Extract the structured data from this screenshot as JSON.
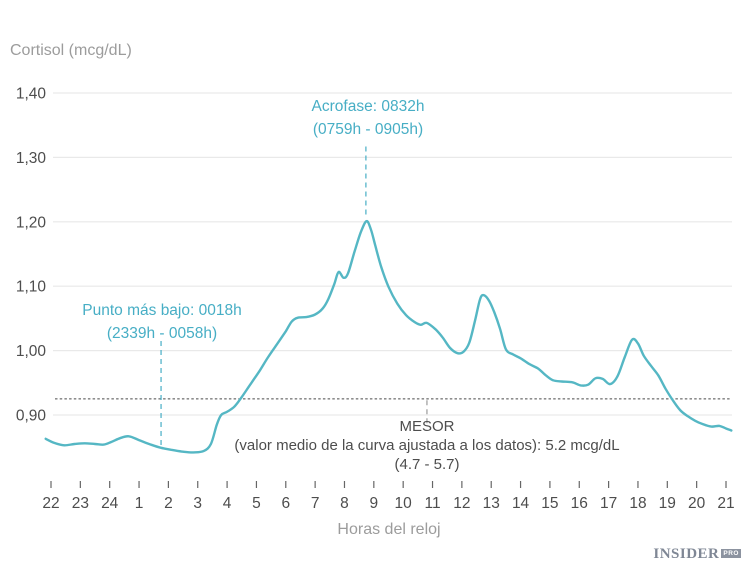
{
  "y_axis_title": "Cortisol (mcg/dL)",
  "x_axis_title": "Horas del reloj",
  "logo": {
    "text": "INSIDER",
    "badge": "PRO"
  },
  "annotations": {
    "acrophase": {
      "line1": "Acrofase: 0832h",
      "line2": "(0759h - 0905h)"
    },
    "nadir": {
      "line1": "Punto más bajo: 0018h",
      "line2": "(2339h - 0058h)"
    },
    "mesor": {
      "line1": "MESOR",
      "line2": "(valor medio de la curva ajustada a los datos): 5.2 mcg/dL",
      "line3": "(4.7 - 5.7)"
    }
  },
  "chart_data": {
    "type": "line",
    "title": "",
    "xlabel": "Horas del reloj",
    "ylabel": "Cortisol (mcg/dL)",
    "legend": "none",
    "grid": "horizontal-only",
    "colors": {
      "line": "#55b7c4",
      "accent_text": "#47aec5",
      "grid": "#e9e9e9",
      "tick_text": "#4d4d4d",
      "tick_mark": "#666666",
      "mesor_dash": "#4a4a4a",
      "muted_text": "#9c9c9c"
    },
    "y_ticks": [
      {
        "label": "1,40",
        "value": 1.4
      },
      {
        "label": "1,30",
        "value": 1.3
      },
      {
        "label": "1,20",
        "value": 1.2
      },
      {
        "label": "1,10",
        "value": 1.1
      },
      {
        "label": "1,00",
        "value": 1.0
      },
      {
        "label": "0,90",
        "value": 0.9
      }
    ],
    "x_tick_labels": [
      "22",
      "23",
      "24",
      "1",
      "2",
      "3",
      "4",
      "5",
      "6",
      "7",
      "8",
      "9",
      "10",
      "11",
      "12",
      "13",
      "14",
      "15",
      "16",
      "17",
      "18",
      "19",
      "20",
      "21"
    ],
    "x_first_hour": 22,
    "ylim": [
      0.85,
      1.45
    ],
    "mesor_line_value": 0.925,
    "markers": {
      "acrophase_line": {
        "hour": 32.73,
        "v_from": 1.317,
        "v_to": 1.209
      },
      "nadir_line": {
        "hour": 25.75,
        "v_from": 1.015,
        "v_to": 0.853
      },
      "mesor_connector": {
        "hour": 34.81,
        "v_from": 0.923,
        "v_to": 0.887
      }
    },
    "points": [
      [
        21.82,
        0.863
      ],
      [
        22.1,
        0.857
      ],
      [
        22.45,
        0.853
      ],
      [
        22.8,
        0.855
      ],
      [
        23.15,
        0.856
      ],
      [
        23.5,
        0.855
      ],
      [
        23.8,
        0.854
      ],
      [
        24.05,
        0.858
      ],
      [
        24.35,
        0.864
      ],
      [
        24.65,
        0.867
      ],
      [
        25.0,
        0.861
      ],
      [
        25.4,
        0.854
      ],
      [
        25.75,
        0.849
      ],
      [
        26.1,
        0.846
      ],
      [
        26.5,
        0.843
      ],
      [
        26.85,
        0.842
      ],
      [
        27.2,
        0.844
      ],
      [
        27.45,
        0.855
      ],
      [
        27.65,
        0.885
      ],
      [
        27.8,
        0.9
      ],
      [
        28.0,
        0.905
      ],
      [
        28.25,
        0.913
      ],
      [
        28.5,
        0.928
      ],
      [
        28.8,
        0.948
      ],
      [
        29.1,
        0.968
      ],
      [
        29.4,
        0.99
      ],
      [
        29.7,
        1.01
      ],
      [
        30.0,
        1.03
      ],
      [
        30.2,
        1.045
      ],
      [
        30.4,
        1.051
      ],
      [
        30.7,
        1.052
      ],
      [
        31.0,
        1.056
      ],
      [
        31.25,
        1.065
      ],
      [
        31.45,
        1.08
      ],
      [
        31.65,
        1.103
      ],
      [
        31.8,
        1.122
      ],
      [
        31.97,
        1.113
      ],
      [
        32.12,
        1.12
      ],
      [
        32.35,
        1.155
      ],
      [
        32.55,
        1.183
      ],
      [
        32.75,
        1.201
      ],
      [
        32.9,
        1.188
      ],
      [
        33.05,
        1.163
      ],
      [
        33.25,
        1.13
      ],
      [
        33.5,
        1.099
      ],
      [
        33.8,
        1.073
      ],
      [
        34.1,
        1.055
      ],
      [
        34.4,
        1.044
      ],
      [
        34.6,
        1.04
      ],
      [
        34.8,
        1.043
      ],
      [
        35.1,
        1.033
      ],
      [
        35.35,
        1.02
      ],
      [
        35.6,
        1.004
      ],
      [
        35.85,
        0.996
      ],
      [
        36.05,
        0.998
      ],
      [
        36.25,
        1.012
      ],
      [
        36.45,
        1.047
      ],
      [
        36.62,
        1.08
      ],
      [
        36.75,
        1.086
      ],
      [
        36.93,
        1.077
      ],
      [
        37.1,
        1.06
      ],
      [
        37.3,
        1.034
      ],
      [
        37.5,
        1.002
      ],
      [
        37.75,
        0.994
      ],
      [
        38.0,
        0.988
      ],
      [
        38.3,
        0.979
      ],
      [
        38.6,
        0.972
      ],
      [
        38.85,
        0.962
      ],
      [
        39.1,
        0.954
      ],
      [
        39.4,
        0.952
      ],
      [
        39.75,
        0.951
      ],
      [
        40.05,
        0.946
      ],
      [
        40.3,
        0.947
      ],
      [
        40.55,
        0.957
      ],
      [
        40.8,
        0.956
      ],
      [
        41.05,
        0.948
      ],
      [
        41.3,
        0.96
      ],
      [
        41.55,
        0.99
      ],
      [
        41.8,
        1.017
      ],
      [
        42.0,
        1.011
      ],
      [
        42.2,
        0.992
      ],
      [
        42.45,
        0.976
      ],
      [
        42.7,
        0.961
      ],
      [
        42.95,
        0.94
      ],
      [
        43.2,
        0.922
      ],
      [
        43.45,
        0.907
      ],
      [
        43.7,
        0.898
      ],
      [
        43.95,
        0.891
      ],
      [
        44.2,
        0.886
      ],
      [
        44.5,
        0.882
      ],
      [
        44.78,
        0.883
      ],
      [
        45.0,
        0.879
      ],
      [
        45.18,
        0.876
      ]
    ]
  }
}
